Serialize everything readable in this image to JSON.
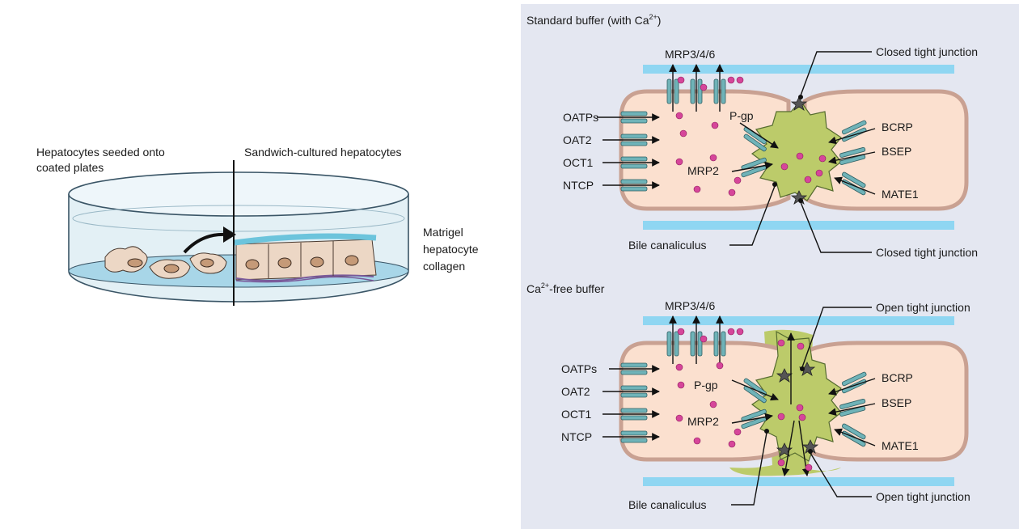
{
  "left": {
    "label_seeded": "Hepatocytes seeded onto",
    "label_seeded_2": "coated plates",
    "label_sandwich": "Sandwich-cultured hepatocytes",
    "matrix_1": "Matrigel",
    "matrix_2": "hepatocyte",
    "matrix_3": "collagen"
  },
  "top_panel": {
    "title_main": "Standard buffer (with Ca",
    "title_sup": "2+",
    "title_end": ")",
    "mrp346": "MRP3/4/6",
    "closed_tj_top": "Closed tight junction",
    "closed_tj_bottom": "Closed tight junction",
    "oatps": "OATPs",
    "oat2": "OAT2",
    "oct1": "OCT1",
    "ntcp": "NTCP",
    "pgp": "P-gp",
    "mrp2": "MRP2",
    "bcrp": "BCRP",
    "bsep": "BSEP",
    "mate1": "MATE1",
    "bile": "Bile canaliculus"
  },
  "bottom_panel": {
    "title_pre": "Ca",
    "title_sup": "2+",
    "title_end": "-free buffer",
    "mrp346": "MRP3/4/6",
    "open_tj_top": "Open tight junction",
    "open_tj_bottom": "Open tight junction",
    "oatps": "OATPs",
    "oat2": "OAT2",
    "oct1": "OCT1",
    "ntcp": "NTCP",
    "pgp": "P-gp",
    "mrp2": "MRP2",
    "bcrp": "BCRP",
    "bsep": "BSEP",
    "mate1": "MATE1",
    "bile": "Bile canaliculus"
  },
  "colors": {
    "panel_bg": "#e4e7f1",
    "cell_fill": "#fbe0cf",
    "cell_border": "#c9a192",
    "bile": "#bccb6a",
    "transporter": "#6fb3b8",
    "molecule": "#d6469a",
    "blue_band": "#8fd6f2"
  }
}
